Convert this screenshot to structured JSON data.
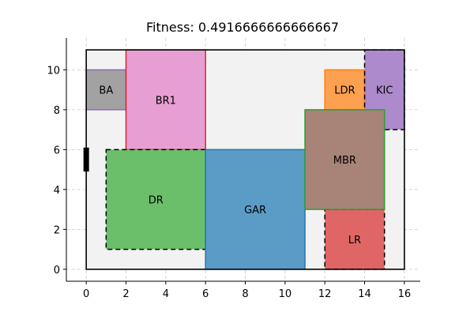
{
  "chart_data": {
    "type": "floorplan",
    "title": "Fitness: 0.4916666666666667",
    "xlim": [
      -1.0,
      16.8
    ],
    "ylim": [
      -0.6,
      11.6
    ],
    "xticks": [
      0,
      2,
      4,
      6,
      8,
      10,
      12,
      14,
      16
    ],
    "yticks": [
      0,
      2,
      4,
      6,
      8,
      10
    ],
    "grid": true,
    "boundary": {
      "x": 0,
      "y": 0,
      "w": 16,
      "h": 11,
      "fill": "#f2f2f2"
    },
    "door": {
      "x": 0,
      "y1": 4.9,
      "y2": 6.1
    },
    "rooms": [
      {
        "name": "BA",
        "x": 0,
        "y": 8,
        "w": 2,
        "h": 2,
        "fill": "#a2a2a2",
        "edge": "#9467bd",
        "dashed": false,
        "alpha": 1
      },
      {
        "name": "BR1",
        "x": 2,
        "y": 6,
        "w": 4,
        "h": 5,
        "fill": "#e79fd3",
        "edge": "#d62728",
        "dashed": false,
        "alpha": 1
      },
      {
        "name": "DR",
        "x": 1,
        "y": 1,
        "w": 5,
        "h": 5,
        "fill": "#6bbf6b",
        "edge": "#000000",
        "dashed": true,
        "alpha": 1
      },
      {
        "name": "GAR",
        "x": 6,
        "y": 0,
        "w": 5,
        "h": 6,
        "fill": "#5b9cc7",
        "edge": "#1f77b4",
        "dashed": false,
        "alpha": 1
      },
      {
        "name": "LR",
        "x": 12,
        "y": 0,
        "w": 3,
        "h": 3,
        "fill": "#e06666",
        "edge": "#000000",
        "dashed": true,
        "alpha": 1
      },
      {
        "name": "LDR",
        "x": 12,
        "y": 8,
        "w": 2,
        "h": 2,
        "fill": "#fda150",
        "edge": "#ff7f0e",
        "dashed": false,
        "alpha": 1
      },
      {
        "name": "KIC",
        "x": 14,
        "y": 7,
        "w": 2,
        "h": 4,
        "fill": "#9467bd",
        "edge": "#000000",
        "dashed": true,
        "alpha": 0.75
      },
      {
        "name": "MBR",
        "x": 11,
        "y": 3,
        "w": 4,
        "h": 5,
        "fill": "#a88378",
        "edge": "#2ca02c",
        "dashed": false,
        "alpha": 1
      }
    ]
  }
}
